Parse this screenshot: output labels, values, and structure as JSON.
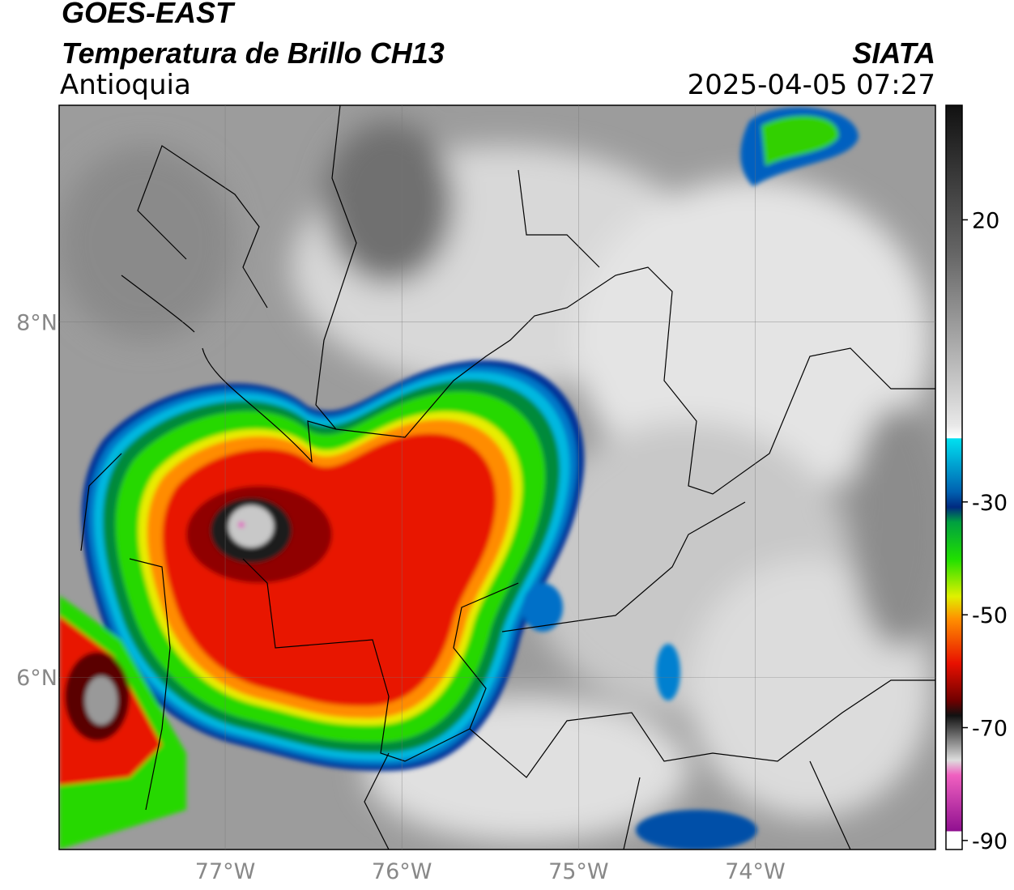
{
  "header": {
    "title": "GOES-EAST",
    "subtitle": "Temperatura de Brillo CH13",
    "region": "Antioquia",
    "source": "SIATA",
    "datetime": "2025-04-05 07:27"
  },
  "map": {
    "xlim": [
      -77.94,
      -72.98
    ],
    "ylim": [
      5.03,
      9.22
    ],
    "xticks": [
      {
        "value": -77,
        "label": "77°W"
      },
      {
        "value": -76,
        "label": "76°W"
      },
      {
        "value": -75,
        "label": "75°W"
      },
      {
        "value": -74,
        "label": "74°W"
      }
    ],
    "yticks": [
      {
        "value": 8,
        "label": "8°N"
      },
      {
        "value": 6,
        "label": "6°N"
      }
    ],
    "grid": true
  },
  "colorbar": {
    "clim": [
      -91.6,
      40.3
    ],
    "ticks": [
      20,
      -30,
      -50,
      -70,
      -90
    ]
  }
}
